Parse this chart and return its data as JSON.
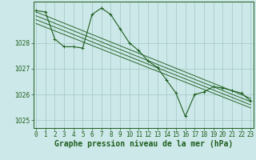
{
  "background_color": "#cce8e8",
  "grid_color": "#aacccc",
  "line_color": "#1e5e1e",
  "xlabel": "Graphe pression niveau de la mer (hPa)",
  "xlabel_fontsize": 7,
  "ylim": [
    1024.7,
    1029.6
  ],
  "xlim": [
    -0.3,
    23.3
  ],
  "yticks": [
    1025,
    1026,
    1027,
    1028
  ],
  "xticks": [
    0,
    1,
    2,
    3,
    4,
    5,
    6,
    7,
    8,
    9,
    10,
    11,
    12,
    13,
    14,
    15,
    16,
    17,
    18,
    19,
    20,
    21,
    22,
    23
  ],
  "main_line_x": [
    0,
    1,
    2,
    3,
    4,
    5,
    6,
    7,
    8,
    9,
    10,
    11,
    12,
    13,
    14,
    15,
    16,
    17,
    18,
    19,
    20,
    21,
    22,
    23
  ],
  "main_line_y": [
    1029.25,
    1029.2,
    1028.15,
    1027.85,
    1027.85,
    1027.8,
    1029.1,
    1029.35,
    1029.1,
    1028.55,
    1028.0,
    1027.7,
    1027.3,
    1027.05,
    1026.55,
    1026.05,
    1025.15,
    1026.0,
    1026.1,
    1026.3,
    1026.25,
    1026.15,
    1026.05,
    1025.75
  ],
  "trend_lines": [
    {
      "x": [
        0,
        23
      ],
      "y": [
        1029.2,
        1025.85
      ]
    },
    {
      "x": [
        0,
        23
      ],
      "y": [
        1029.05,
        1025.72
      ]
    },
    {
      "x": [
        0,
        23
      ],
      "y": [
        1028.9,
        1025.6
      ]
    },
    {
      "x": [
        0,
        23
      ],
      "y": [
        1028.75,
        1025.48
      ]
    }
  ],
  "tick_fontsize": 5.5,
  "tick_color": "#1e5e1e",
  "spine_color": "#1e5e1e"
}
